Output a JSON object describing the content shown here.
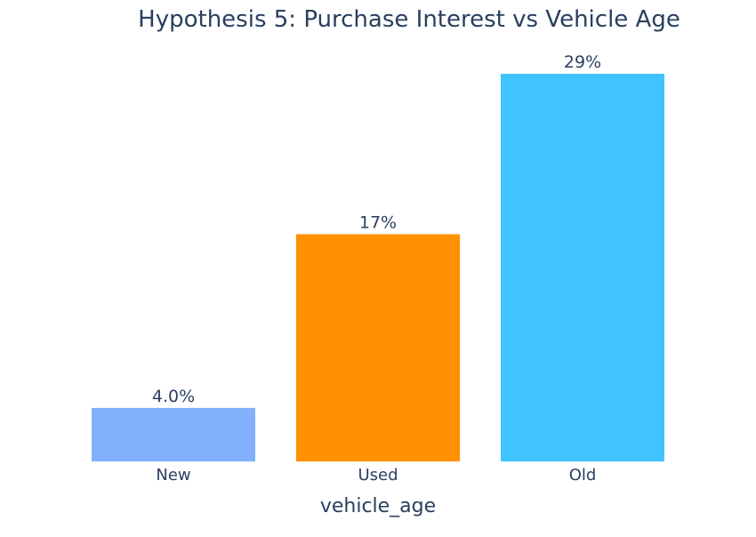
{
  "chart_data": {
    "type": "bar",
    "title": "Hypothesis 5: Purchase Interest vs Vehicle Age",
    "xlabel": "vehicle_age",
    "ylabel": "",
    "categories": [
      "New",
      "Used",
      "Old"
    ],
    "values": [
      0.04,
      0.17,
      0.29
    ],
    "value_labels": [
      "4.0%",
      "17%",
      "29%"
    ],
    "colors": [
      "#83b0fc",
      "#ff9100",
      "#40c4ff"
    ],
    "ylim": [
      0,
      0.29
    ],
    "grid": false,
    "legend": "none",
    "text_color": "#2a3f5f"
  }
}
